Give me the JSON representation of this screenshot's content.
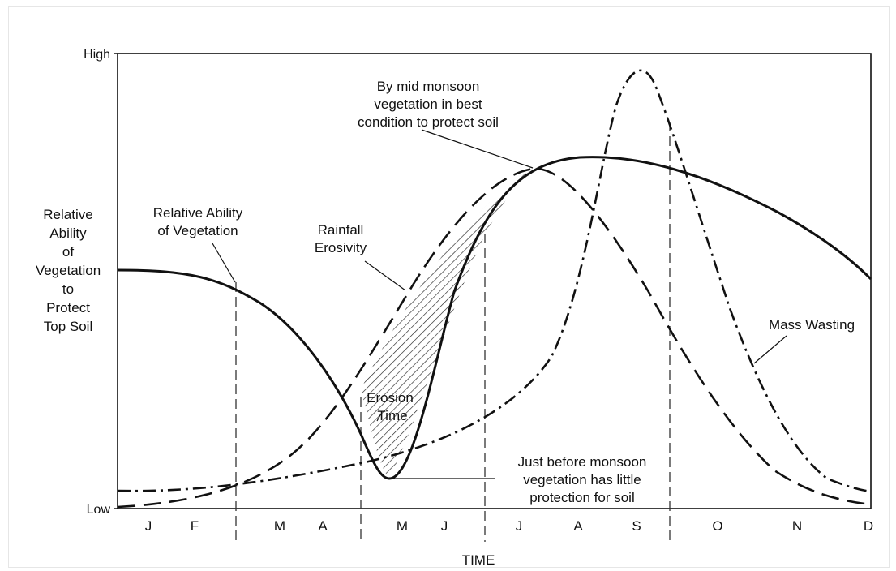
{
  "axes": {
    "y_high": "High",
    "y_low": "Low",
    "x_title": "TIME",
    "y_title_lines": [
      "Relative",
      "Ability",
      "of",
      "Vegetation",
      "to",
      "Protect",
      "Top Soil"
    ],
    "months": [
      "J",
      "F",
      "M",
      "A",
      "M",
      "J",
      "J",
      "A",
      "S",
      "O",
      "N",
      "D"
    ]
  },
  "labels": {
    "vegetation_lines": [
      "Relative Ability",
      "of Vegetation"
    ],
    "rainfall_lines": [
      "Rainfall",
      "Erosivity"
    ],
    "midmonsoon_lines": [
      "By mid monsoon",
      "vegetation in best",
      "condition to protect soil"
    ],
    "mass_wasting": "Mass Wasting",
    "erosion_lines": [
      "Erosion",
      "Time"
    ],
    "premonsoon_lines": [
      "Just before monsoon",
      "vegetation has little",
      "protection for soil"
    ]
  },
  "colors": {
    "ink": "#111111",
    "hatch": "#222222"
  }
}
